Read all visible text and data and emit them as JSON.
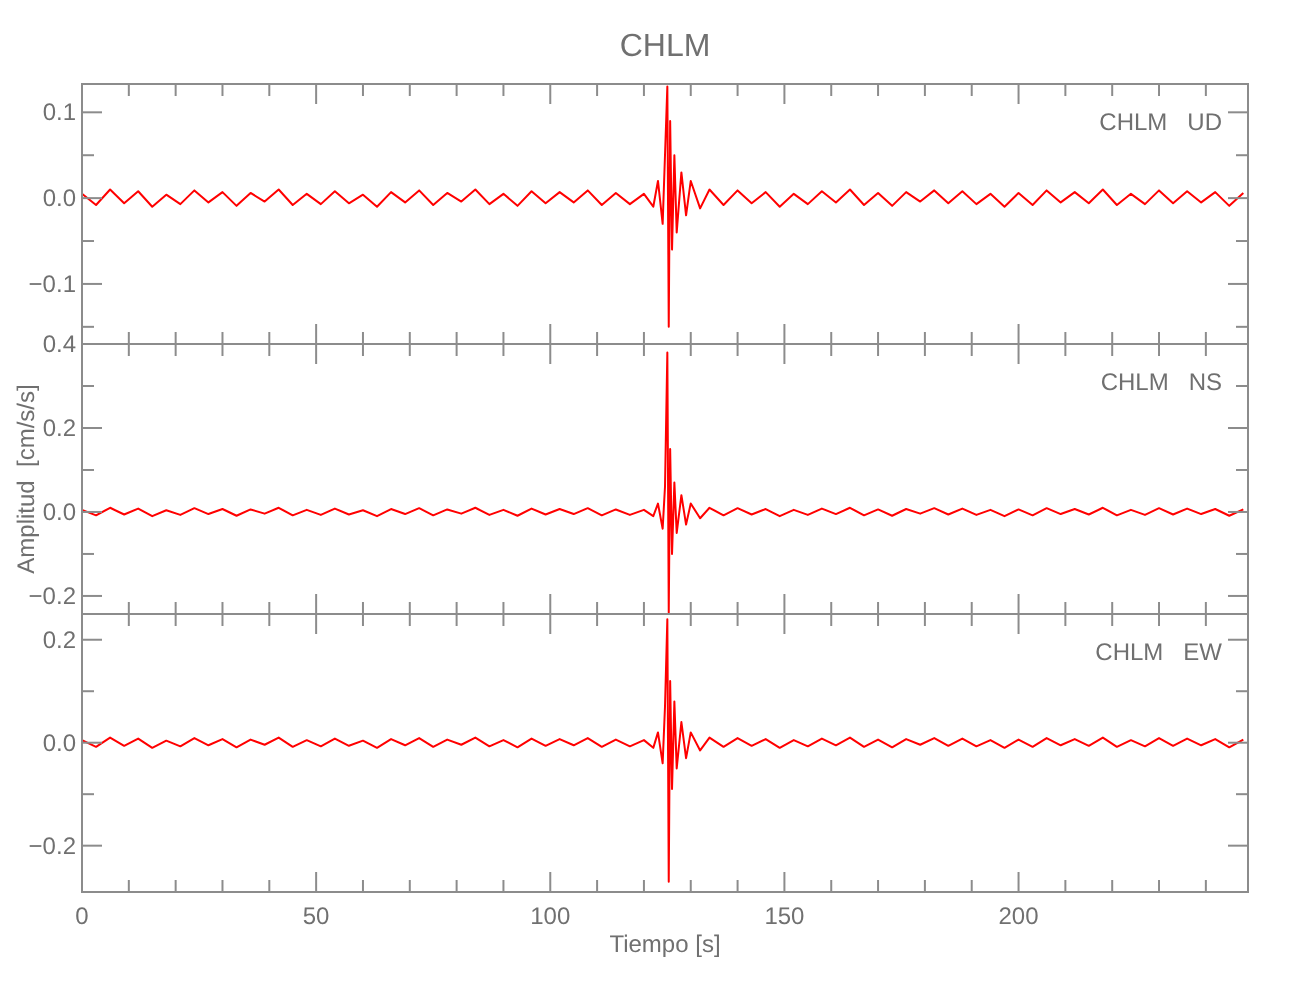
{
  "chart_data": [
    {
      "type": "line",
      "title": "CHLM",
      "annotations": [
        "CHLM   UD"
      ],
      "tick_labels": "y",
      "xlim": [
        0,
        249
      ],
      "ylim": [
        -0.17,
        0.133
      ],
      "xticks": [
        0,
        {
          "value": 10,
          "label": null
        },
        {
          "value": 20,
          "label": null
        },
        {
          "value": 30,
          "label": null
        },
        {
          "value": 40,
          "label": null
        },
        50,
        {
          "value": 60,
          "label": null
        },
        {
          "value": 70,
          "label": null
        },
        {
          "value": 80,
          "label": null
        },
        {
          "value": 90,
          "label": null
        },
        100,
        {
          "value": 110,
          "label": null
        },
        {
          "value": 120,
          "label": null
        },
        {
          "value": 130,
          "label": null
        },
        {
          "value": 140,
          "label": null
        },
        150,
        {
          "value": 160,
          "label": null
        },
        {
          "value": 170,
          "label": null
        },
        {
          "value": 180,
          "label": null
        },
        {
          "value": 190,
          "label": null
        },
        200,
        {
          "value": 210,
          "label": null
        },
        {
          "value": 220,
          "label": null
        },
        {
          "value": 230,
          "label": null
        },
        {
          "value": 240,
          "label": null
        }
      ],
      "yticks": [
        {
          "value": -0.15,
          "label": null
        },
        {
          "value": -0.1,
          "label": "−0.1"
        },
        {
          "value": -0.05,
          "label": null
        },
        {
          "value": 0,
          "label": "0.0"
        },
        {
          "value": 0.05,
          "label": null
        },
        {
          "value": 0.1,
          "label": "0.1"
        }
      ],
      "x": [
        0,
        3,
        6,
        9,
        12,
        15,
        18,
        21,
        24,
        27,
        30,
        33,
        36,
        39,
        42,
        45,
        48,
        51,
        54,
        57,
        60,
        63,
        66,
        69,
        72,
        75,
        78,
        81,
        84,
        87,
        90,
        93,
        96,
        99,
        102,
        105,
        108,
        111,
        114,
        117,
        120,
        122,
        123,
        124,
        124.5,
        125,
        125.3,
        125.6,
        126,
        126.5,
        127,
        128,
        129,
        130,
        132,
        134,
        137,
        140,
        143,
        146,
        149,
        152,
        155,
        158,
        161,
        164,
        167,
        170,
        173,
        176,
        179,
        182,
        185,
        188,
        191,
        194,
        197,
        200,
        203,
        206,
        209,
        212,
        215,
        218,
        221,
        224,
        227,
        230,
        233,
        236,
        239,
        242,
        245,
        248
      ],
      "series": [
        {
          "color": "#ff0000",
          "values": [
            0.005,
            -0.008,
            0.01,
            -0.006,
            0.008,
            -0.01,
            0.004,
            -0.007,
            0.009,
            -0.005,
            0.007,
            -0.009,
            0.006,
            -0.004,
            0.01,
            -0.008,
            0.005,
            -0.007,
            0.008,
            -0.006,
            0.004,
            -0.01,
            0.007,
            -0.005,
            0.009,
            -0.008,
            0.006,
            -0.004,
            0.01,
            -0.007,
            0.005,
            -0.009,
            0.008,
            -0.006,
            0.007,
            -0.005,
            0.009,
            -0.008,
            0.006,
            -0.007,
            0.005,
            -0.01,
            0.02,
            -0.03,
            0.05,
            0.13,
            -0.15,
            0.09,
            -0.06,
            0.05,
            -0.04,
            0.03,
            -0.02,
            0.02,
            -0.012,
            0.01,
            -0.008,
            0.009,
            -0.006,
            0.007,
            -0.01,
            0.005,
            -0.007,
            0.008,
            -0.005,
            0.01,
            -0.008,
            0.006,
            -0.009,
            0.007,
            -0.004,
            0.009,
            -0.006,
            0.008,
            -0.007,
            0.005,
            -0.01,
            0.006,
            -0.008,
            0.009,
            -0.005,
            0.007,
            -0.006,
            0.01,
            -0.008,
            0.005,
            -0.007,
            0.009,
            -0.006,
            0.008,
            -0.005,
            0.007,
            -0.009,
            0.006
          ]
        }
      ]
    },
    {
      "type": "line",
      "ylabel": "Amplitud  [cm/s/s]",
      "annotations": [
        "CHLM   NS"
      ],
      "tick_labels": "y",
      "xlim": [
        0,
        249
      ],
      "ylim": [
        -0.243,
        0.4
      ],
      "xticks": [
        0,
        {
          "value": 10,
          "label": null
        },
        {
          "value": 20,
          "label": null
        },
        {
          "value": 30,
          "label": null
        },
        {
          "value": 40,
          "label": null
        },
        50,
        {
          "value": 60,
          "label": null
        },
        {
          "value": 70,
          "label": null
        },
        {
          "value": 80,
          "label": null
        },
        {
          "value": 90,
          "label": null
        },
        100,
        {
          "value": 110,
          "label": null
        },
        {
          "value": 120,
          "label": null
        },
        {
          "value": 130,
          "label": null
        },
        {
          "value": 140,
          "label": null
        },
        150,
        {
          "value": 160,
          "label": null
        },
        {
          "value": 170,
          "label": null
        },
        {
          "value": 180,
          "label": null
        },
        {
          "value": 190,
          "label": null
        },
        200,
        {
          "value": 210,
          "label": null
        },
        {
          "value": 220,
          "label": null
        },
        {
          "value": 230,
          "label": null
        },
        {
          "value": 240,
          "label": null
        }
      ],
      "yticks": [
        {
          "value": -0.2,
          "label": "−0.2"
        },
        {
          "value": -0.1,
          "label": null
        },
        {
          "value": 0,
          "label": "0.0"
        },
        {
          "value": 0.1,
          "label": null
        },
        {
          "value": 0.2,
          "label": "0.2"
        },
        {
          "value": 0.3,
          "label": null
        },
        {
          "value": 0.4,
          "label": "0.4"
        }
      ],
      "x": [
        0,
        3,
        6,
        9,
        12,
        15,
        18,
        21,
        24,
        27,
        30,
        33,
        36,
        39,
        42,
        45,
        48,
        51,
        54,
        57,
        60,
        63,
        66,
        69,
        72,
        75,
        78,
        81,
        84,
        87,
        90,
        93,
        96,
        99,
        102,
        105,
        108,
        111,
        114,
        117,
        120,
        122,
        123,
        124,
        124.5,
        125,
        125.3,
        125.6,
        126,
        126.5,
        127,
        128,
        129,
        130,
        132,
        134,
        137,
        140,
        143,
        146,
        149,
        152,
        155,
        158,
        161,
        164,
        167,
        170,
        173,
        176,
        179,
        182,
        185,
        188,
        191,
        194,
        197,
        200,
        203,
        206,
        209,
        212,
        215,
        218,
        221,
        224,
        227,
        230,
        233,
        236,
        239,
        242,
        245,
        248
      ],
      "series": [
        {
          "color": "#ff0000",
          "values": [
            0.005,
            -0.008,
            0.01,
            -0.006,
            0.008,
            -0.01,
            0.004,
            -0.007,
            0.009,
            -0.005,
            0.007,
            -0.009,
            0.006,
            -0.004,
            0.01,
            -0.008,
            0.005,
            -0.007,
            0.008,
            -0.006,
            0.004,
            -0.01,
            0.007,
            -0.005,
            0.009,
            -0.008,
            0.006,
            -0.004,
            0.01,
            -0.007,
            0.005,
            -0.009,
            0.008,
            -0.006,
            0.007,
            -0.005,
            0.009,
            -0.008,
            0.006,
            -0.007,
            0.005,
            -0.01,
            0.02,
            -0.04,
            0.06,
            0.38,
            -0.24,
            0.15,
            -0.1,
            0.07,
            -0.05,
            0.04,
            -0.03,
            0.02,
            -0.015,
            0.01,
            -0.008,
            0.009,
            -0.006,
            0.007,
            -0.01,
            0.005,
            -0.007,
            0.008,
            -0.005,
            0.01,
            -0.008,
            0.006,
            -0.009,
            0.007,
            -0.004,
            0.009,
            -0.006,
            0.008,
            -0.007,
            0.005,
            -0.01,
            0.006,
            -0.008,
            0.009,
            -0.005,
            0.007,
            -0.006,
            0.01,
            -0.008,
            0.005,
            -0.007,
            0.009,
            -0.006,
            0.008,
            -0.005,
            0.007,
            -0.009,
            0.006
          ]
        }
      ]
    },
    {
      "type": "line",
      "xlabel": "Tiempo  [s]",
      "annotations": [
        "CHLM   EW"
      ],
      "xlim": [
        0,
        249
      ],
      "ylim": [
        -0.29,
        0.25
      ],
      "xticks": [
        0,
        {
          "value": 10,
          "label": null
        },
        {
          "value": 20,
          "label": null
        },
        {
          "value": 30,
          "label": null
        },
        {
          "value": 40,
          "label": null
        },
        50,
        {
          "value": 60,
          "label": null
        },
        {
          "value": 70,
          "label": null
        },
        {
          "value": 80,
          "label": null
        },
        {
          "value": 90,
          "label": null
        },
        100,
        {
          "value": 110,
          "label": null
        },
        {
          "value": 120,
          "label": null
        },
        {
          "value": 130,
          "label": null
        },
        {
          "value": 140,
          "label": null
        },
        150,
        {
          "value": 160,
          "label": null
        },
        {
          "value": 170,
          "label": null
        },
        {
          "value": 180,
          "label": null
        },
        {
          "value": 190,
          "label": null
        },
        200,
        {
          "value": 210,
          "label": null
        },
        {
          "value": 220,
          "label": null
        },
        {
          "value": 230,
          "label": null
        },
        {
          "value": 240,
          "label": null
        }
      ],
      "yticks": [
        {
          "value": -0.2,
          "label": "−0.2"
        },
        {
          "value": -0.1,
          "label": null
        },
        {
          "value": 0,
          "label": "0.0"
        },
        {
          "value": 0.1,
          "label": null
        },
        {
          "value": 0.2,
          "label": "0.2"
        }
      ],
      "x": [
        0,
        3,
        6,
        9,
        12,
        15,
        18,
        21,
        24,
        27,
        30,
        33,
        36,
        39,
        42,
        45,
        48,
        51,
        54,
        57,
        60,
        63,
        66,
        69,
        72,
        75,
        78,
        81,
        84,
        87,
        90,
        93,
        96,
        99,
        102,
        105,
        108,
        111,
        114,
        117,
        120,
        122,
        123,
        124,
        124.5,
        125,
        125.3,
        125.6,
        126,
        126.5,
        127,
        128,
        129,
        130,
        132,
        134,
        137,
        140,
        143,
        146,
        149,
        152,
        155,
        158,
        161,
        164,
        167,
        170,
        173,
        176,
        179,
        182,
        185,
        188,
        191,
        194,
        197,
        200,
        203,
        206,
        209,
        212,
        215,
        218,
        221,
        224,
        227,
        230,
        233,
        236,
        239,
        242,
        245,
        248
      ],
      "series": [
        {
          "color": "#ff0000",
          "values": [
            0.005,
            -0.008,
            0.01,
            -0.006,
            0.008,
            -0.01,
            0.004,
            -0.007,
            0.009,
            -0.005,
            0.007,
            -0.009,
            0.006,
            -0.004,
            0.01,
            -0.008,
            0.005,
            -0.007,
            0.008,
            -0.006,
            0.004,
            -0.01,
            0.007,
            -0.005,
            0.009,
            -0.008,
            0.006,
            -0.004,
            0.01,
            -0.007,
            0.005,
            -0.009,
            0.008,
            -0.006,
            0.007,
            -0.005,
            0.009,
            -0.008,
            0.006,
            -0.007,
            0.005,
            -0.01,
            0.02,
            -0.04,
            0.07,
            0.24,
            -0.27,
            0.12,
            -0.09,
            0.08,
            -0.05,
            0.04,
            -0.03,
            0.02,
            -0.015,
            0.01,
            -0.008,
            0.009,
            -0.006,
            0.007,
            -0.01,
            0.005,
            -0.007,
            0.008,
            -0.005,
            0.01,
            -0.008,
            0.006,
            -0.009,
            0.007,
            -0.004,
            0.009,
            -0.006,
            0.008,
            -0.007,
            0.005,
            -0.01,
            0.006,
            -0.008,
            0.009,
            -0.005,
            0.007,
            -0.006,
            0.01,
            -0.008,
            0.005,
            -0.007,
            0.009,
            -0.006,
            0.008,
            -0.005,
            0.007,
            -0.009,
            0.006
          ]
        }
      ]
    }
  ]
}
